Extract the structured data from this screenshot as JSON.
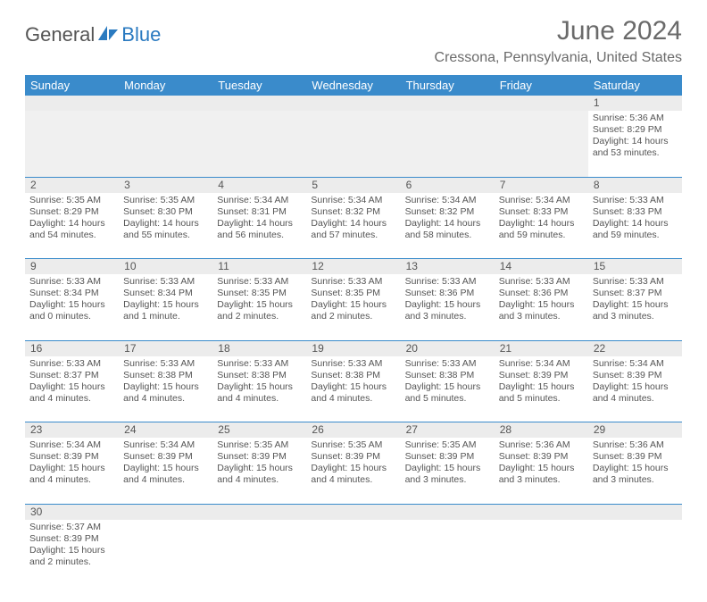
{
  "brand": {
    "part1": "General",
    "part2": "Blue"
  },
  "title": "June 2024",
  "location": "Cressona, Pennsylvania, United States",
  "colors": {
    "header_bg": "#3a8bcb",
    "header_text": "#ffffff",
    "daynum_bg": "#ececec",
    "border": "#3a8bcb",
    "text": "#555555",
    "brand_accent": "#2a7ac0"
  },
  "weekdays": [
    "Sunday",
    "Monday",
    "Tuesday",
    "Wednesday",
    "Thursday",
    "Friday",
    "Saturday"
  ],
  "weeks": [
    [
      null,
      null,
      null,
      null,
      null,
      null,
      {
        "d": "1",
        "sr": "5:36 AM",
        "ss": "8:29 PM",
        "dl": "14 hours and 53 minutes."
      }
    ],
    [
      {
        "d": "2",
        "sr": "5:35 AM",
        "ss": "8:29 PM",
        "dl": "14 hours and 54 minutes."
      },
      {
        "d": "3",
        "sr": "5:35 AM",
        "ss": "8:30 PM",
        "dl": "14 hours and 55 minutes."
      },
      {
        "d": "4",
        "sr": "5:34 AM",
        "ss": "8:31 PM",
        "dl": "14 hours and 56 minutes."
      },
      {
        "d": "5",
        "sr": "5:34 AM",
        "ss": "8:32 PM",
        "dl": "14 hours and 57 minutes."
      },
      {
        "d": "6",
        "sr": "5:34 AM",
        "ss": "8:32 PM",
        "dl": "14 hours and 58 minutes."
      },
      {
        "d": "7",
        "sr": "5:34 AM",
        "ss": "8:33 PM",
        "dl": "14 hours and 59 minutes."
      },
      {
        "d": "8",
        "sr": "5:33 AM",
        "ss": "8:33 PM",
        "dl": "14 hours and 59 minutes."
      }
    ],
    [
      {
        "d": "9",
        "sr": "5:33 AM",
        "ss": "8:34 PM",
        "dl": "15 hours and 0 minutes."
      },
      {
        "d": "10",
        "sr": "5:33 AM",
        "ss": "8:34 PM",
        "dl": "15 hours and 1 minute."
      },
      {
        "d": "11",
        "sr": "5:33 AM",
        "ss": "8:35 PM",
        "dl": "15 hours and 2 minutes."
      },
      {
        "d": "12",
        "sr": "5:33 AM",
        "ss": "8:35 PM",
        "dl": "15 hours and 2 minutes."
      },
      {
        "d": "13",
        "sr": "5:33 AM",
        "ss": "8:36 PM",
        "dl": "15 hours and 3 minutes."
      },
      {
        "d": "14",
        "sr": "5:33 AM",
        "ss": "8:36 PM",
        "dl": "15 hours and 3 minutes."
      },
      {
        "d": "15",
        "sr": "5:33 AM",
        "ss": "8:37 PM",
        "dl": "15 hours and 3 minutes."
      }
    ],
    [
      {
        "d": "16",
        "sr": "5:33 AM",
        "ss": "8:37 PM",
        "dl": "15 hours and 4 minutes."
      },
      {
        "d": "17",
        "sr": "5:33 AM",
        "ss": "8:38 PM",
        "dl": "15 hours and 4 minutes."
      },
      {
        "d": "18",
        "sr": "5:33 AM",
        "ss": "8:38 PM",
        "dl": "15 hours and 4 minutes."
      },
      {
        "d": "19",
        "sr": "5:33 AM",
        "ss": "8:38 PM",
        "dl": "15 hours and 4 minutes."
      },
      {
        "d": "20",
        "sr": "5:33 AM",
        "ss": "8:38 PM",
        "dl": "15 hours and 5 minutes."
      },
      {
        "d": "21",
        "sr": "5:34 AM",
        "ss": "8:39 PM",
        "dl": "15 hours and 5 minutes."
      },
      {
        "d": "22",
        "sr": "5:34 AM",
        "ss": "8:39 PM",
        "dl": "15 hours and 4 minutes."
      }
    ],
    [
      {
        "d": "23",
        "sr": "5:34 AM",
        "ss": "8:39 PM",
        "dl": "15 hours and 4 minutes."
      },
      {
        "d": "24",
        "sr": "5:34 AM",
        "ss": "8:39 PM",
        "dl": "15 hours and 4 minutes."
      },
      {
        "d": "25",
        "sr": "5:35 AM",
        "ss": "8:39 PM",
        "dl": "15 hours and 4 minutes."
      },
      {
        "d": "26",
        "sr": "5:35 AM",
        "ss": "8:39 PM",
        "dl": "15 hours and 4 minutes."
      },
      {
        "d": "27",
        "sr": "5:35 AM",
        "ss": "8:39 PM",
        "dl": "15 hours and 3 minutes."
      },
      {
        "d": "28",
        "sr": "5:36 AM",
        "ss": "8:39 PM",
        "dl": "15 hours and 3 minutes."
      },
      {
        "d": "29",
        "sr": "5:36 AM",
        "ss": "8:39 PM",
        "dl": "15 hours and 3 minutes."
      }
    ],
    [
      {
        "d": "30",
        "sr": "5:37 AM",
        "ss": "8:39 PM",
        "dl": "15 hours and 2 minutes."
      },
      null,
      null,
      null,
      null,
      null,
      null
    ]
  ],
  "labels": {
    "sunrise": "Sunrise:",
    "sunset": "Sunset:",
    "daylight": "Daylight:"
  }
}
